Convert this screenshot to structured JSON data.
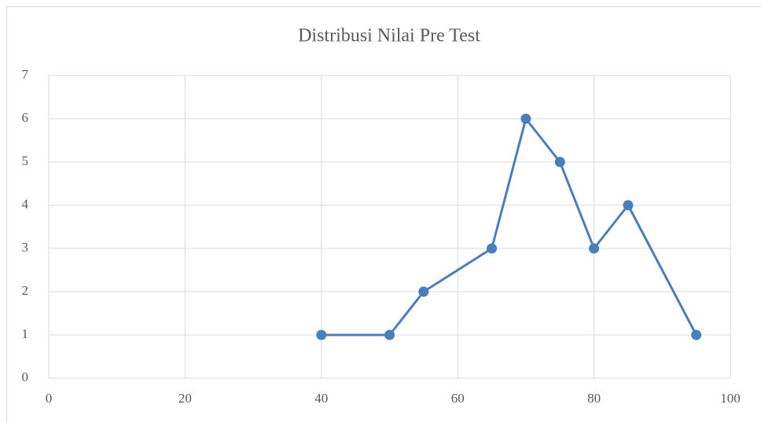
{
  "chart_data": {
    "type": "line",
    "title": "Distribusi Nilai Pre Test",
    "x": [
      40,
      50,
      55,
      65,
      70,
      75,
      80,
      85,
      95
    ],
    "series": [
      {
        "color": "#4a7ebb",
        "values": [
          1,
          1,
          2,
          3,
          6,
          5,
          3,
          4,
          1
        ]
      }
    ],
    "xlim": [
      0,
      100
    ],
    "xticks": [
      0,
      20,
      40,
      60,
      80,
      100
    ],
    "ylim": [
      0,
      7
    ],
    "yticks": [
      0,
      1,
      2,
      3,
      4,
      5,
      6,
      7
    ],
    "grid": true,
    "markers": true
  }
}
